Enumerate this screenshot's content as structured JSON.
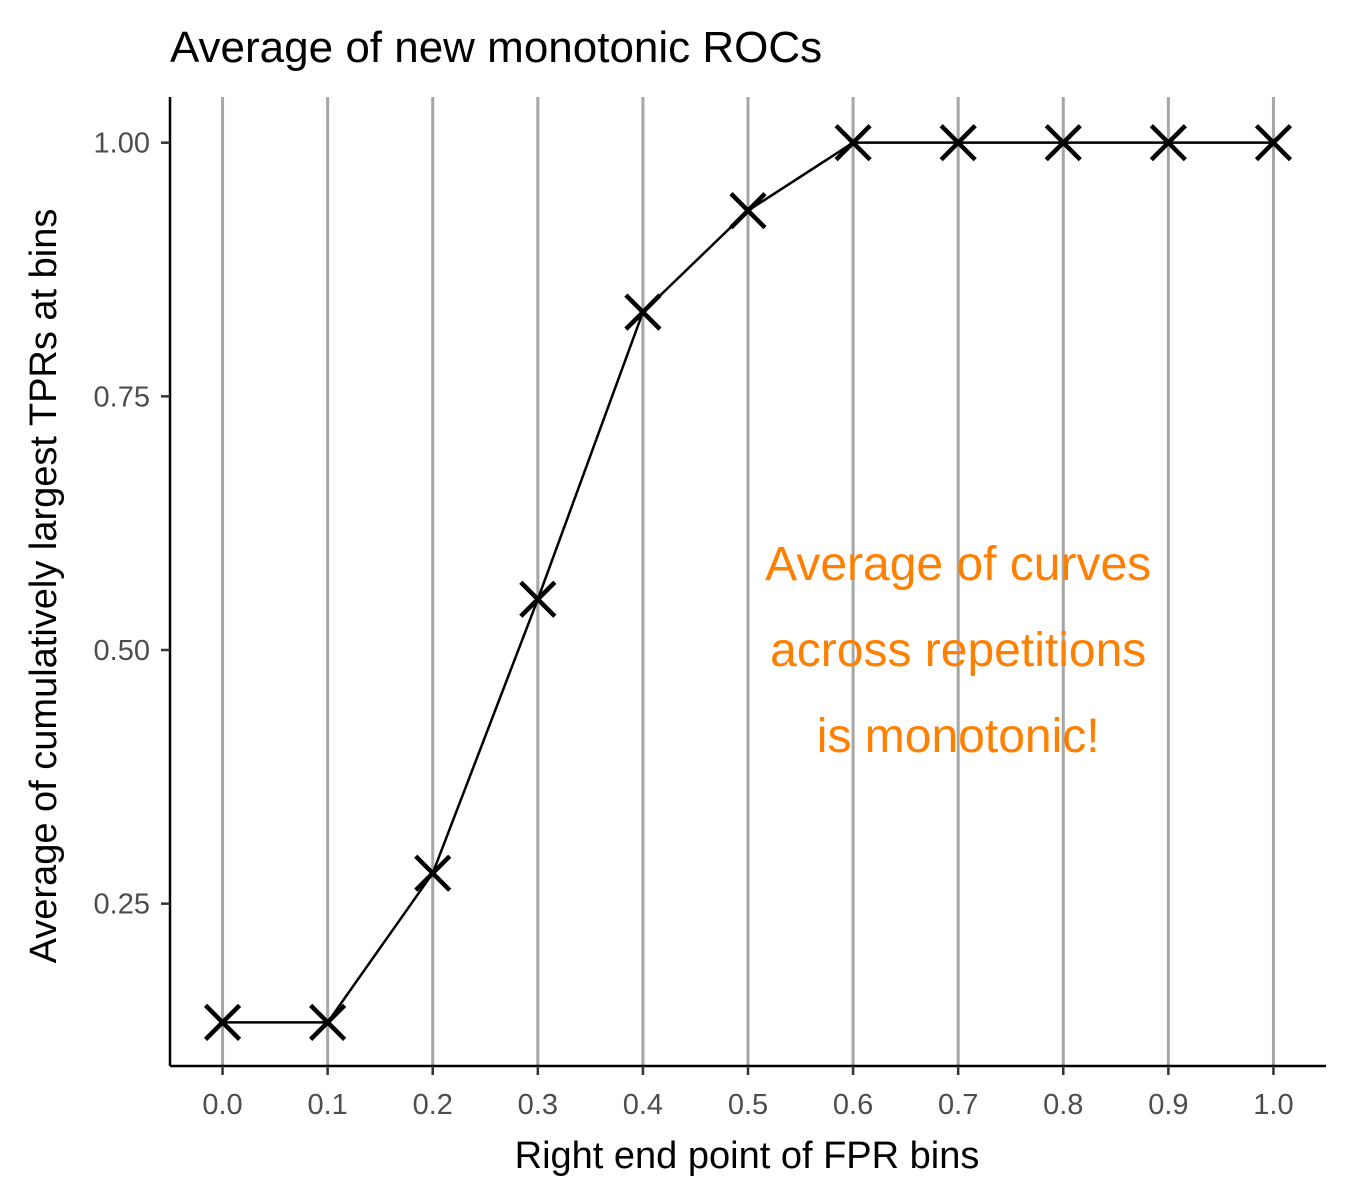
{
  "chart_data": {
    "type": "line",
    "title": "Average of new monotonic ROCs",
    "xlabel": "Right end point of FPR bins",
    "ylabel": "Average of cumulatively largest TPRs at bins",
    "x": [
      0.0,
      0.1,
      0.2,
      0.3,
      0.4,
      0.5,
      0.6,
      0.7,
      0.8,
      0.9,
      1.0
    ],
    "series": [
      {
        "values": [
          0.133,
          0.133,
          0.28,
          0.55,
          0.833,
          0.933,
          1.0,
          1.0,
          1.0,
          1.0,
          1.0
        ],
        "marker": "x",
        "color": "#000000"
      }
    ],
    "xlim": [
      -0.05,
      1.05
    ],
    "ylim": [
      0.09,
      1.045
    ],
    "x_ticks": [
      "0.0",
      "0.1",
      "0.2",
      "0.3",
      "0.4",
      "0.5",
      "0.6",
      "0.7",
      "0.8",
      "0.9",
      "1.0"
    ],
    "y_ticks": [
      "0.25",
      "0.50",
      "0.75",
      "1.00"
    ],
    "y_tick_values": [
      0.25,
      0.5,
      0.75,
      1.0
    ],
    "grid": "vertical major lines",
    "grid_color": "#a6a6a6",
    "annotation": {
      "lines": [
        "Average of curves",
        "across repetitions",
        "is monotonic!"
      ],
      "color": "#ff7f00",
      "x": 0.7,
      "y": 0.5
    }
  }
}
